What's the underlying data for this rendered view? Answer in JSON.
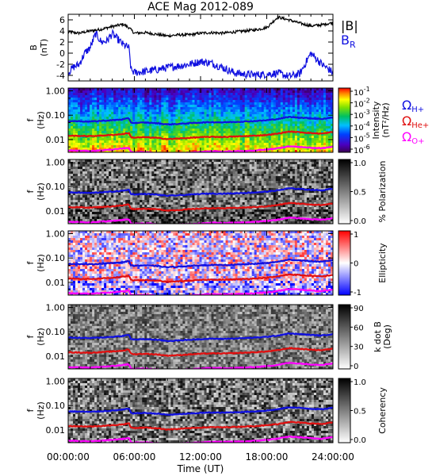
{
  "chart_data": {
    "type": "line",
    "title": "ACE Mag 2012-089",
    "xlabel": "Time (UT)",
    "x_tick_labels": [
      "00:00:00",
      "06:00:00",
      "12:00:00",
      "18:00:00",
      "24:00:00"
    ],
    "xlim": [
      0,
      24
    ],
    "panels": [
      {
        "id": "field",
        "type": "line",
        "ylabel": "B",
        "yunit": "(nT)",
        "ylim": [
          -5,
          7
        ],
        "y_tick_labels": [
          "6",
          "4",
          "2",
          "0",
          "-2",
          "-4"
        ],
        "y_ticks": [
          6,
          4,
          2,
          0,
          -2,
          -4
        ],
        "legend": "right",
        "series": [
          {
            "name": "|B|",
            "color": "#000000",
            "x": [
              0,
              1,
              2,
              3,
              4,
              5,
              5.5,
              6,
              7,
              8,
              9,
              10,
              11,
              12,
              13,
              14,
              15,
              16,
              17,
              18,
              19,
              20,
              21,
              22,
              23,
              24
            ],
            "values": [
              3.8,
              3.6,
              4.0,
              4.3,
              4.8,
              5.2,
              4.6,
              3.6,
              3.7,
              3.4,
              3.1,
              3.3,
              3.3,
              3.6,
              3.7,
              3.6,
              3.8,
              4.0,
              4.2,
              4.6,
              6.5,
              6.0,
              5.4,
              4.9,
              5.1,
              5.5
            ]
          },
          {
            "name": "B",
            "name_sub": "R",
            "color": "#1010e0",
            "x": [
              0,
              0.5,
              1,
              1.5,
              2,
              2.5,
              3,
              3.5,
              4,
              4.5,
              5,
              5.5,
              5.7,
              6,
              7,
              8,
              9,
              10,
              11,
              12,
              13,
              14,
              15,
              16,
              17,
              18,
              19,
              20,
              21,
              22,
              23,
              24
            ],
            "values": [
              -3.5,
              -2.5,
              -2.0,
              0.0,
              1.0,
              3.5,
              2.0,
              2.2,
              3.5,
              2.5,
              1.5,
              1.0,
              -3.0,
              -3.5,
              -3.3,
              -3.0,
              -2.6,
              -2.3,
              -2.0,
              -1.5,
              -1.8,
              -2.6,
              -3.5,
              -3.8,
              -3.9,
              -3.8,
              -3.6,
              -4.2,
              -3.7,
              0.0,
              -2.0,
              -3.5
            ]
          }
        ]
      },
      {
        "id": "intensity",
        "type": "heatmap",
        "ylabel": "f",
        "yunit": "(Hz)",
        "ylim_log": [
          0.003,
          1.3
        ],
        "y_tick_labels": [
          "1.00",
          "0.10",
          "0.01"
        ],
        "y_ticks": [
          1,
          0.1,
          0.01
        ],
        "colorbar_label": [
          "Intensity",
          "(nT²/Hz)"
        ],
        "colorbar_ticks": [
          {
            "base": "10",
            "exp": "-1"
          },
          {
            "base": "10",
            "exp": "-2"
          },
          {
            "base": "10",
            "exp": "-3"
          },
          {
            "base": "10",
            "exp": "-4"
          },
          {
            "base": "10",
            "exp": "-5"
          },
          {
            "base": "10",
            "exp": "-6"
          }
        ],
        "colormap": "rainbow"
      },
      {
        "id": "polarization",
        "type": "heatmap",
        "ylabel": "f",
        "yunit": "(Hz)",
        "y_tick_labels": [
          "1.00",
          "0.10",
          "0.01"
        ],
        "colorbar_label": [
          "% Polarization"
        ],
        "colorbar_ticks": [
          "1.0",
          "0.5",
          "0.0"
        ],
        "colormap": "gray"
      },
      {
        "id": "ellipticity",
        "type": "heatmap",
        "ylabel": "f",
        "yunit": "(Hz)",
        "y_tick_labels": [
          "1.00",
          "0.10",
          "0.01"
        ],
        "colorbar_label": [
          "Ellipticity"
        ],
        "colorbar_ticks": [
          "1",
          "0",
          "-1"
        ],
        "colormap": "blue-white-red"
      },
      {
        "id": "kdotb",
        "type": "heatmap",
        "ylabel": "f",
        "yunit": "(Hz)",
        "y_tick_labels": [
          "1.00",
          "0.10",
          "0.01"
        ],
        "colorbar_label": [
          "k dot B",
          "(Deg)"
        ],
        "colorbar_ticks": [
          "90",
          "60",
          "30",
          "0"
        ],
        "colormap": "gray"
      },
      {
        "id": "coherency",
        "type": "heatmap",
        "ylabel": "f",
        "yunit": "(Hz)",
        "y_tick_labels": [
          "1.00",
          "0.10",
          "0.01"
        ],
        "colorbar_label": [
          "Coherency"
        ],
        "colorbar_ticks": [
          "1.0",
          "0.5",
          "0.0"
        ],
        "colormap": "gray"
      }
    ],
    "gyrofrequency_lines": {
      "x": [
        0,
        2,
        4,
        5,
        5.5,
        5.7,
        6,
        7,
        8,
        9,
        10,
        11,
        12,
        13,
        14,
        15,
        16,
        17,
        18,
        19,
        20,
        21,
        22,
        23,
        24
      ],
      "series": [
        {
          "name": "Ω",
          "sub": "H+",
          "color": "#1010e0",
          "values": [
            0.058,
            0.055,
            0.062,
            0.068,
            0.075,
            0.05,
            0.048,
            0.05,
            0.047,
            0.042,
            0.044,
            0.047,
            0.05,
            0.052,
            0.051,
            0.053,
            0.055,
            0.058,
            0.062,
            0.07,
            0.085,
            0.08,
            0.074,
            0.07,
            0.082
          ]
        },
        {
          "name": "Ω",
          "sub": "He+",
          "color": "#e01010",
          "values": [
            0.0145,
            0.0138,
            0.0155,
            0.017,
            0.0188,
            0.0125,
            0.012,
            0.0125,
            0.0118,
            0.0105,
            0.011,
            0.0118,
            0.0125,
            0.013,
            0.0128,
            0.0133,
            0.0138,
            0.0145,
            0.0155,
            0.0175,
            0.0213,
            0.02,
            0.0185,
            0.0175,
            0.0205
          ]
        },
        {
          "name": "Ω",
          "sub": "O+",
          "color": "#ff00ff",
          "values": [
            0.0036,
            0.0034,
            0.0039,
            0.0043,
            0.0047,
            0.0031,
            0.003,
            0.0031,
            0.0029,
            0.0026,
            0.0028,
            0.0029,
            0.0031,
            0.0033,
            0.0032,
            0.0033,
            0.0034,
            0.0036,
            0.0039,
            0.0044,
            0.0053,
            0.005,
            0.0046,
            0.0044,
            0.0051
          ]
        }
      ]
    },
    "grid": false
  }
}
